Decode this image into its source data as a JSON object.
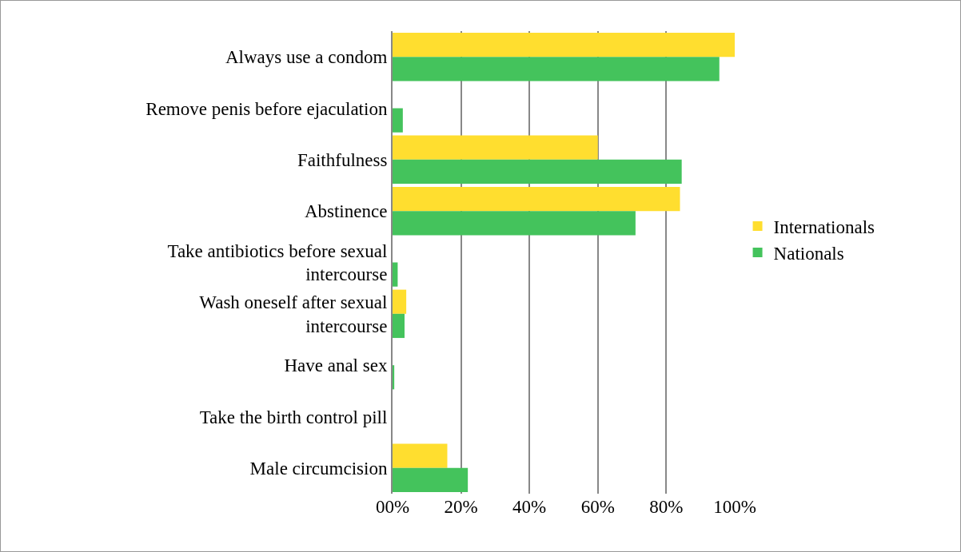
{
  "chart_data": {
    "type": "bar",
    "orientation": "horizontal",
    "categories": [
      "Always use a condom",
      "Remove penis before ejaculation",
      "Faithfulness",
      "Abstinence",
      "Take antibiotics before sexual intercourse",
      "Wash oneself after sexual intercourse",
      "Have anal sex",
      "Take the birth control pill",
      "Male circumcision"
    ],
    "series": [
      {
        "name": "Internationals",
        "color": "#ffde2f",
        "values": [
          100,
          0,
          60,
          84,
          0,
          4,
          0,
          0,
          16
        ]
      },
      {
        "name": "Nationals",
        "color": "#44c35c",
        "values": [
          95.5,
          3,
          84.5,
          71,
          1.5,
          3.5,
          0.5,
          0,
          22
        ]
      }
    ],
    "xlim": [
      0,
      100
    ],
    "xticks": [
      {
        "value": 0,
        "label": "00%"
      },
      {
        "value": 20,
        "label": "20%"
      },
      {
        "value": 40,
        "label": "40%"
      },
      {
        "value": 60,
        "label": "60%"
      },
      {
        "value": 80,
        "label": "80%"
      },
      {
        "value": 100,
        "label": "100%"
      }
    ],
    "grid": "x",
    "legend": "right"
  }
}
